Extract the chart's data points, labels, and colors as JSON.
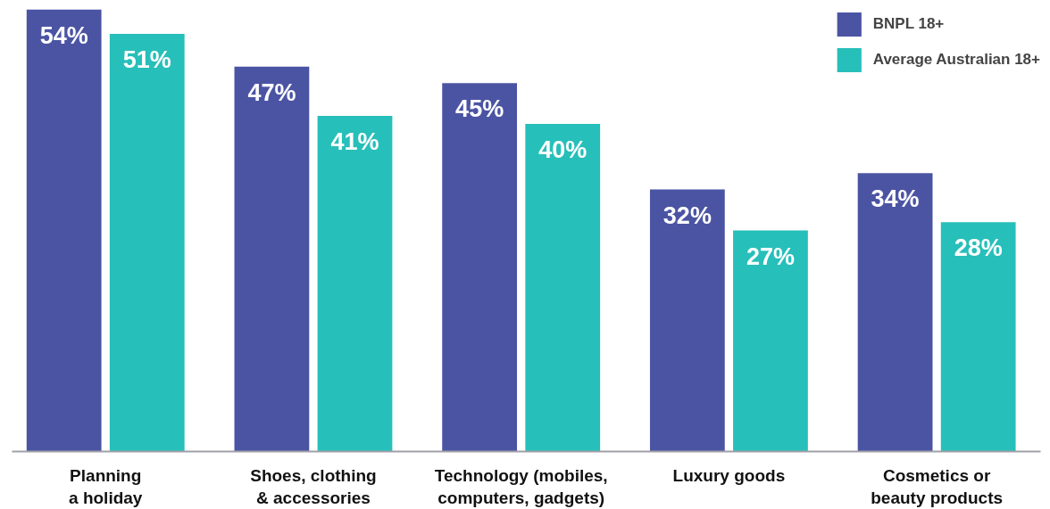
{
  "chart_data": {
    "type": "bar",
    "categories": [
      "Planning a holiday",
      "Shoes, clothing & accessories",
      "Technology (mobiles, computers, gadgets)",
      "Luxury goods",
      "Cosmetics or beauty products"
    ],
    "series": [
      {
        "name": "BNPL 18+",
        "color": "#4b54a3",
        "values": [
          54,
          47,
          45,
          32,
          34
        ],
        "value_labels": [
          "54%",
          "47%",
          "45%",
          "32%",
          "34%"
        ]
      },
      {
        "name": "Average Australian 18+",
        "color": "#27bfb9",
        "values": [
          51,
          41,
          40,
          27,
          28
        ],
        "value_labels": [
          "51%",
          "41%",
          "40%",
          "27%",
          "28%"
        ]
      }
    ],
    "legend": "top right",
    "grid": false
  }
}
